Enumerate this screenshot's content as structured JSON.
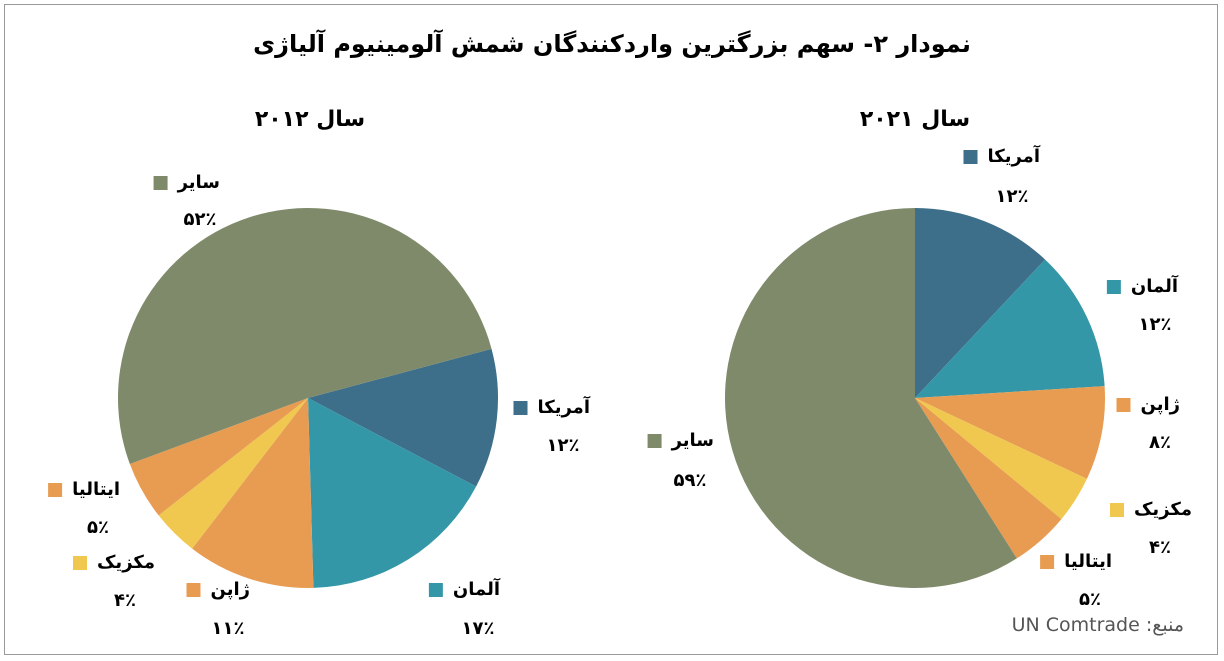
{
  "title": "نمودار ۲- سهم بزرگترین واردکنندگان شمش آلومینیوم آلیاژی",
  "source": "منبع: UN Comtrade",
  "chart_data": [
    {
      "type": "pie",
      "title": "سال ۲۰۱۲",
      "categories": [
        "آمریکا",
        "آلمان",
        "ژاپن",
        "مکزیک",
        "ایتالیا",
        "سایر"
      ],
      "values": [
        12,
        17,
        11,
        4,
        5,
        52
      ],
      "value_labels": [
        "۱۲٪",
        "۱۷٪",
        "۱۱٪",
        "۴٪",
        "۵٪",
        "۵۲٪"
      ],
      "colors": [
        "#3d6e8a",
        "#3497a8",
        "#e89c52",
        "#f0c850",
        "#e89c52",
        "#7f8a6b"
      ]
    },
    {
      "type": "pie",
      "title": "سال ۲۰۲۱",
      "categories": [
        "آمریکا",
        "آلمان",
        "ژاپن",
        "مکزیک",
        "ایتالیا",
        "سایر"
      ],
      "values": [
        12,
        12,
        8,
        4,
        5,
        59
      ],
      "value_labels": [
        "۱۲٪",
        "۱۲٪",
        "۸٪",
        "۴٪",
        "۵٪",
        "۵۹٪"
      ],
      "colors": [
        "#3d6e8a",
        "#3497a8",
        "#e89c52",
        "#f0c850",
        "#e89c52",
        "#7f8a6b"
      ]
    }
  ]
}
